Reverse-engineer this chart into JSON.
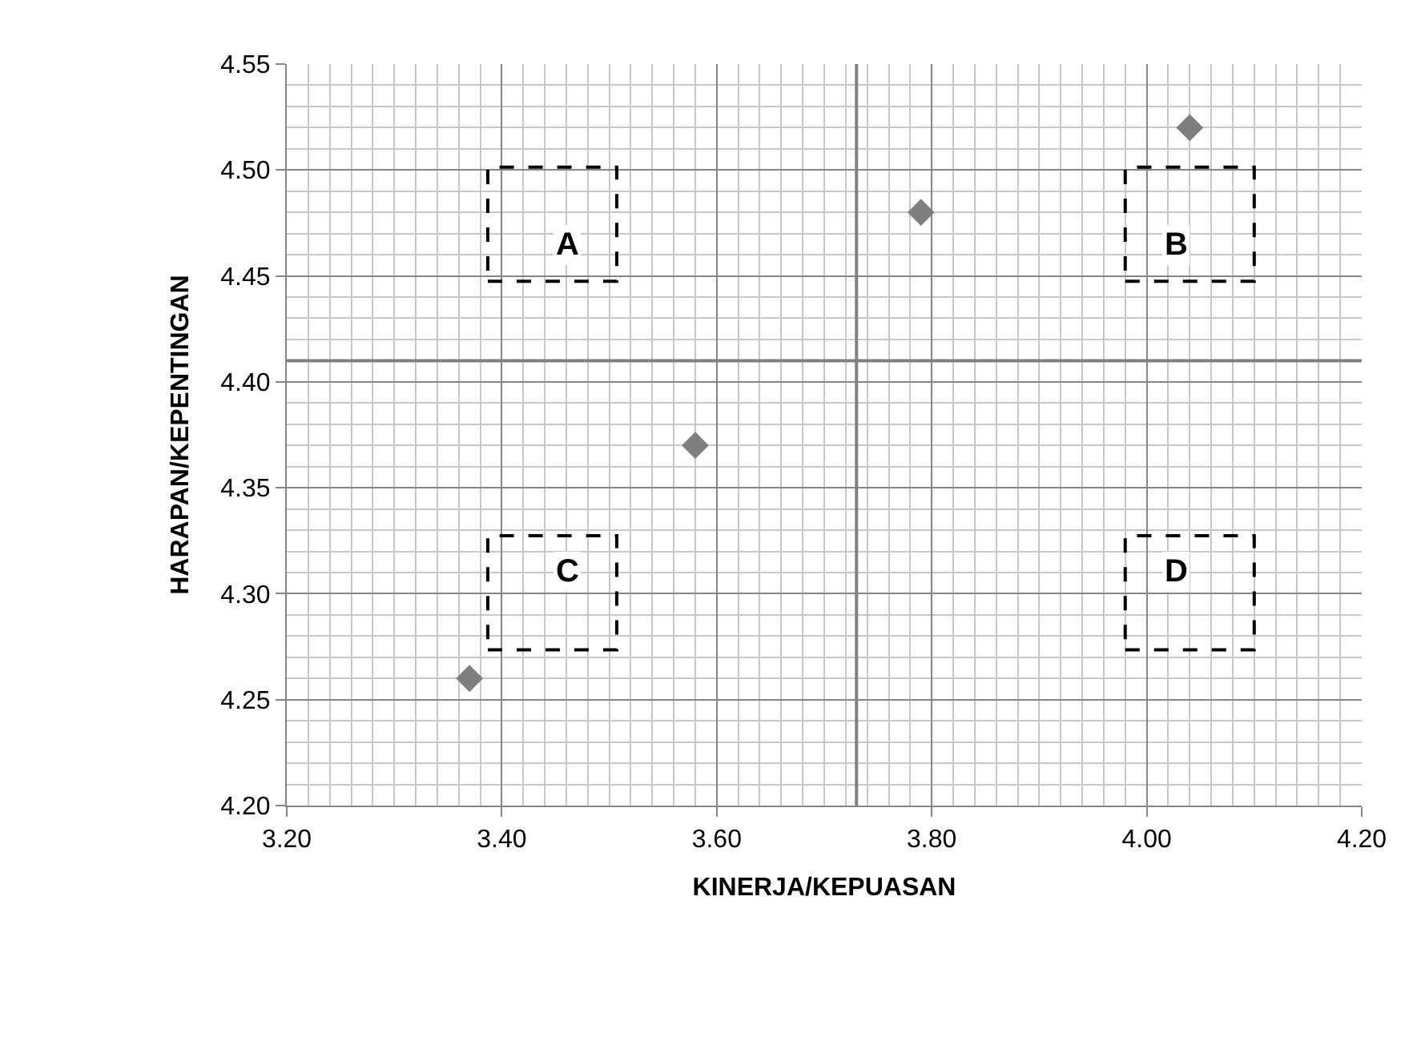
{
  "chart_data": {
    "type": "scatter",
    "xlabel": "KINERJA/KEPUASAN",
    "ylabel": "HARAPAN/KEPENTINGAN",
    "x": [
      3.37,
      3.58,
      3.79,
      4.04
    ],
    "series": [
      {
        "color": "#7f7f7f",
        "values": [
          4.26,
          4.37,
          4.48,
          4.52
        ]
      }
    ],
    "marker": "diamond",
    "grid": true,
    "xlim": [
      3.2,
      4.2
    ],
    "xticks": [
      {
        "value": 3.2,
        "label": "3.20"
      },
      {
        "value": 3.4,
        "label": "3.40"
      },
      {
        "value": 3.6,
        "label": "3.60"
      },
      {
        "value": 3.8,
        "label": "3.80"
      },
      {
        "value": 4.0,
        "label": "4.00"
      },
      {
        "value": 4.2,
        "label": "4.20"
      }
    ],
    "ylim": [
      4.2,
      4.55
    ],
    "yticks": [
      {
        "value": 4.2,
        "label": "4.20"
      },
      {
        "value": 4.25,
        "label": "4.25"
      },
      {
        "value": 4.3,
        "label": "4.30"
      },
      {
        "value": 4.35,
        "label": "4.35"
      },
      {
        "value": 4.4,
        "label": "4.40"
      },
      {
        "value": 4.45,
        "label": "4.45"
      },
      {
        "value": 4.5,
        "label": "4.50"
      },
      {
        "value": 4.55,
        "label": "4.55"
      }
    ],
    "ref_lines": [
      {
        "axis": "x",
        "value": 3.73,
        "color": "#808080"
      },
      {
        "axis": "y",
        "value": 4.41,
        "color": "#808080"
      }
    ],
    "annotations": [
      "A",
      "B",
      "C",
      "D"
    ]
  }
}
